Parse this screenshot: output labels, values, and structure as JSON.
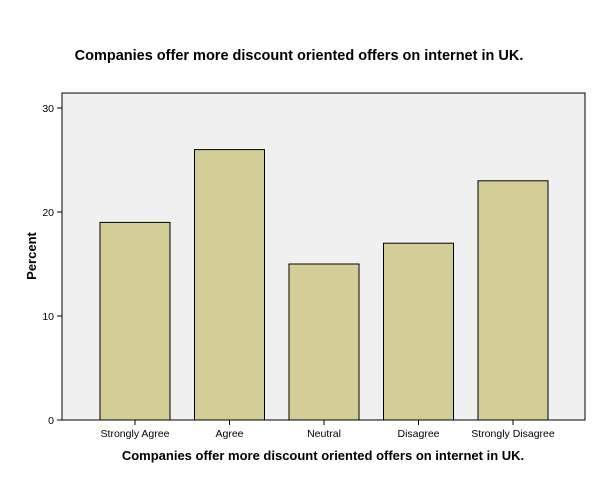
{
  "colors": {
    "plot_background": "#f0f0f0",
    "bar_fill": "#d3ce97",
    "bar_stroke": "#000000",
    "axis": "#000000",
    "frame": "#000000"
  },
  "chart_data": {
    "type": "bar",
    "title": "Companies offer more discount oriented offers on internet in UK.",
    "xlabel": "Companies offer more discount oriented offers on internet in UK.",
    "ylabel": "Percent",
    "categories": [
      "Strongly Agree",
      "Agree",
      "Neutral",
      "Disagree",
      "Strongly Disagree"
    ],
    "values": [
      19,
      26,
      15,
      17,
      23
    ],
    "ylim": [
      0,
      30
    ],
    "yticks": [
      0,
      10,
      20,
      30
    ],
    "grid": false,
    "legend": "none"
  }
}
